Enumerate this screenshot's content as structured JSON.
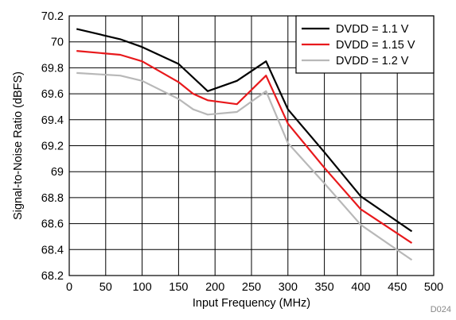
{
  "figure_id": "D024",
  "chart_data": {
    "type": "line",
    "xlabel": "Input Frequency (MHz)",
    "ylabel": "Signal-to-Noise Ratio (dBFS)",
    "xlim": [
      0,
      500
    ],
    "ylim": [
      68.2,
      70.2
    ],
    "xticks": [
      0,
      50,
      100,
      150,
      200,
      250,
      300,
      350,
      400,
      450,
      500
    ],
    "xtick_labels": [
      "0",
      "50",
      "100",
      "150",
      "200",
      "250",
      "300",
      "350",
      "400",
      "450",
      "500"
    ],
    "yticks": [
      68.2,
      68.4,
      68.6,
      68.8,
      69,
      69.2,
      69.4,
      69.6,
      69.8,
      70,
      70.2
    ],
    "ytick_labels": [
      "68.2",
      "68.4",
      "68.6",
      "68.8",
      "69",
      "69.2",
      "69.4",
      "69.6",
      "69.8",
      "70",
      "70.2"
    ],
    "grid": true,
    "legend_position": "top-right",
    "series": [
      {
        "name": "DVDD = 1.1 V",
        "color": "#000000",
        "x": [
          10,
          70,
          100,
          150,
          190,
          230,
          270,
          300,
          350,
          400,
          470
        ],
        "y": [
          70.1,
          70.02,
          69.96,
          69.83,
          69.62,
          69.7,
          69.85,
          69.48,
          69.15,
          68.81,
          68.54
        ]
      },
      {
        "name": "DVDD = 1.15 V",
        "color": "#e8191c",
        "x": [
          10,
          70,
          100,
          150,
          170,
          190,
          230,
          270,
          300,
          350,
          400,
          470
        ],
        "y": [
          69.93,
          69.9,
          69.85,
          69.69,
          69.6,
          69.55,
          69.52,
          69.74,
          69.37,
          69.03,
          68.71,
          68.45
        ]
      },
      {
        "name": "DVDD = 1.2 V",
        "color": "#b8b8b8",
        "x": [
          10,
          70,
          100,
          150,
          170,
          190,
          230,
          270,
          300,
          350,
          400,
          470
        ],
        "y": [
          69.76,
          69.74,
          69.7,
          69.56,
          69.48,
          69.44,
          69.46,
          69.62,
          69.22,
          68.91,
          68.59,
          68.32
        ]
      }
    ]
  }
}
